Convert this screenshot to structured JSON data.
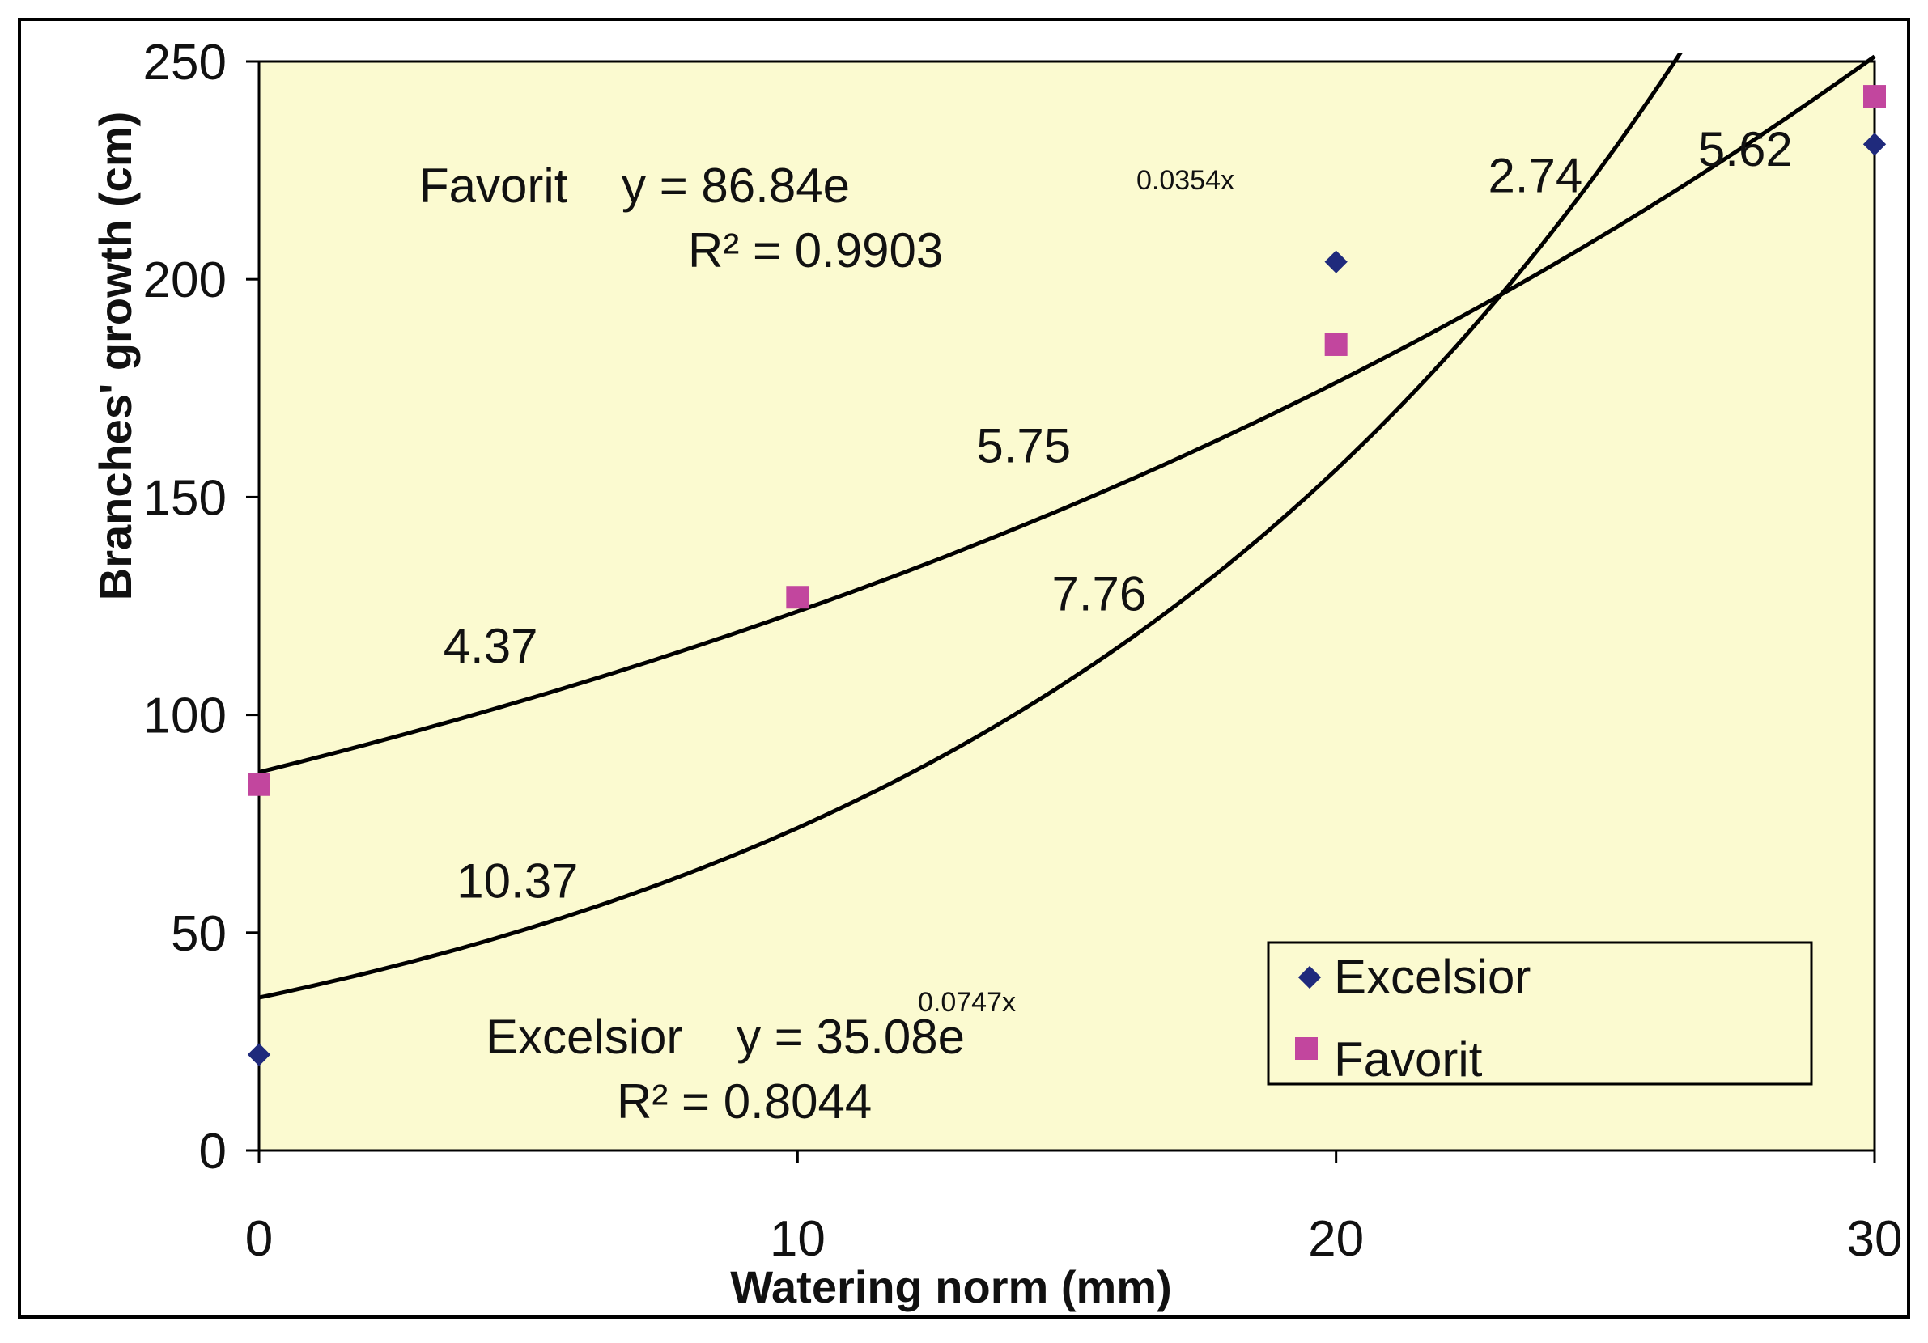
{
  "chart_data": {
    "type": "scatter",
    "xlabel": "Watering norm (mm)",
    "ylabel": "Branches' growth (cm)",
    "xlim": [
      0,
      30
    ],
    "ylim": [
      0,
      250
    ],
    "x_ticks": [
      0,
      10,
      20,
      30
    ],
    "x_tick_labels": [
      "0",
      "10",
      "20",
      "30"
    ],
    "y_ticks": [
      0,
      50,
      100,
      150,
      200,
      250
    ],
    "y_tick_labels": [
      "0",
      "50",
      "100",
      "150",
      "200",
      "250"
    ],
    "grid": false,
    "legend_position": "bottom-right",
    "colors": {
      "plot_background": "#fbfad0",
      "excelsior": "#1f2a7c",
      "favorit": "#c2469e",
      "trendline": "#000000"
    },
    "series": [
      {
        "name": "Excelsior",
        "marker": "diamond",
        "x": [
          0,
          20,
          30
        ],
        "y": [
          22,
          204,
          231
        ],
        "trendline": {
          "type": "exponential",
          "a": 35.08,
          "b": 0.0747,
          "equation_prefix": "Excelsior    y = 35.08e",
          "exponent": "0.0747x",
          "r2_text": "R² = 0.8044"
        }
      },
      {
        "name": "Favorit",
        "marker": "square",
        "x": [
          0,
          10,
          20,
          30
        ],
        "y": [
          84,
          127,
          185,
          242
        ],
        "trendline": {
          "type": "exponential",
          "a": 86.84,
          "b": 0.0354,
          "equation_prefix": "Favorit    y = 86.84e",
          "exponent": "0.0354x",
          "r2_text": "R² = 0.9903"
        }
      }
    ],
    "annotations": [
      {
        "text": "4.37",
        "x": 4.3,
        "y": 112
      },
      {
        "text": "5.75",
        "x": 14.2,
        "y": 158
      },
      {
        "text": "2.74",
        "x": 23.7,
        "y": 220
      },
      {
        "text": "5.62",
        "x": 27.6,
        "y": 226
      },
      {
        "text": "7.76",
        "x": 15.6,
        "y": 124
      },
      {
        "text": "10.37",
        "x": 4.8,
        "y": 58
      }
    ]
  }
}
